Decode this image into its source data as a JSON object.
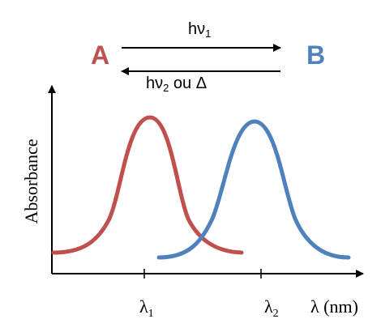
{
  "reaction": {
    "species_a": "A",
    "species_b": "B",
    "forward": {
      "base": "hν",
      "sub": "1"
    },
    "reverse": {
      "base": "hν",
      "sub": "2",
      "tail": " ou Δ"
    }
  },
  "colors": {
    "species_a": "#c0504d",
    "species_b": "#4f81bd",
    "axis": "#000000"
  },
  "chart_data": {
    "type": "line",
    "ylabel": "Absorbance",
    "xlabel": "λ (nm)",
    "ticks": [
      {
        "base": "λ",
        "sub": "1"
      },
      {
        "base": "λ",
        "sub": "2"
      }
    ],
    "series": [
      {
        "name": "A",
        "peak_at": "λ1",
        "color": "#c0504d"
      },
      {
        "name": "B",
        "peak_at": "λ2",
        "color": "#4f81bd"
      }
    ]
  }
}
